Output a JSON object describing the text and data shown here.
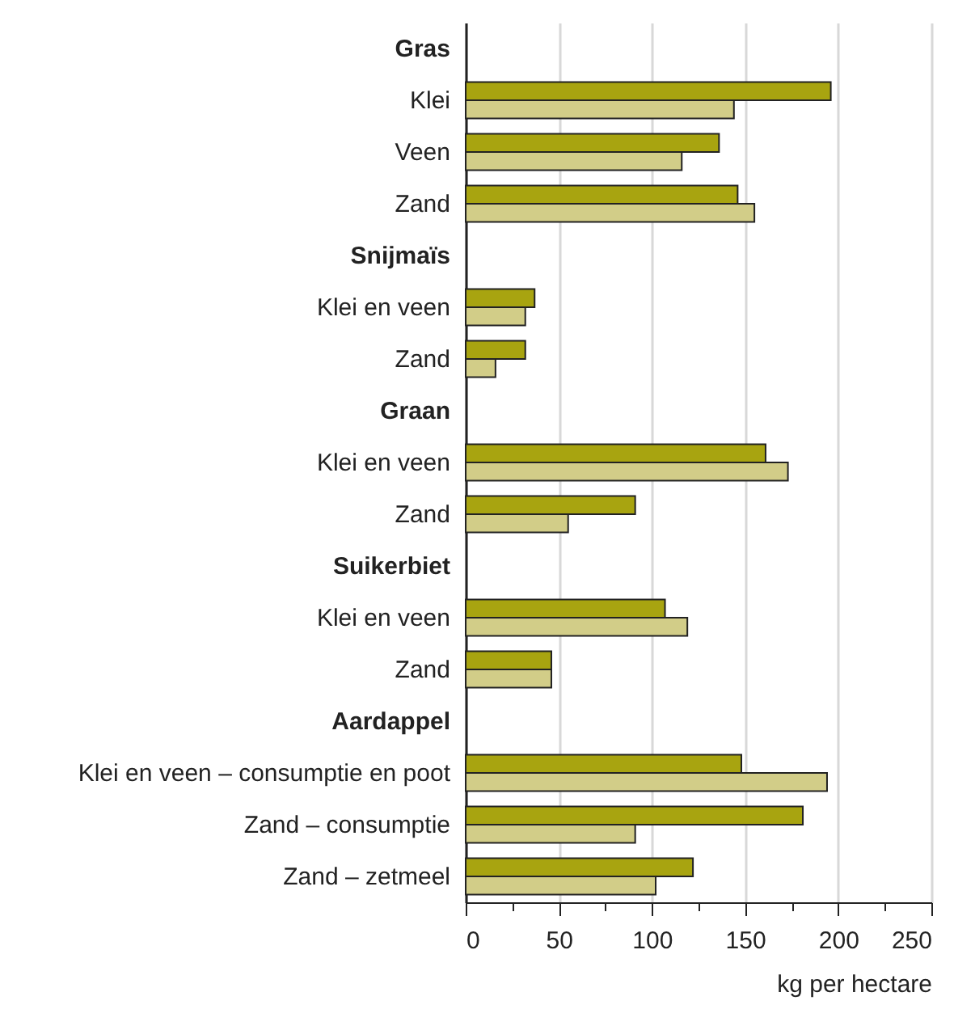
{
  "chart_data": {
    "type": "bar",
    "orientation": "horizontal",
    "xlabel": "kg per hectare",
    "categories": [
      "Gras",
      "Klei",
      "Veen",
      "Zand",
      "Snijmaïs",
      "Klei en veen",
      "Zand",
      "Graan",
      "Klei en veen",
      "Zand",
      "Suikerbiet",
      "Klei en veen",
      "Zand",
      "Aardappel",
      "Klei en veen – consumptie en poot",
      "Zand – consumptie",
      "Zand – zetmeel"
    ],
    "series": [
      {
        "color": "#a8a410",
        "values": [
          null,
          196,
          136,
          146,
          null,
          37,
          32,
          null,
          161,
          91,
          null,
          107,
          46,
          null,
          148,
          181,
          122
        ]
      },
      {
        "color": "#d2cd88",
        "values": [
          null,
          144,
          116,
          155,
          null,
          32,
          16,
          null,
          173,
          55,
          null,
          119,
          46,
          null,
          194,
          91,
          102
        ]
      }
    ],
    "xlim": [
      0,
      250
    ],
    "xticks": [
      0,
      {
        "value": 25,
        "label": null
      },
      50,
      {
        "value": 75,
        "label": null
      },
      100,
      {
        "value": 125,
        "label": null
      },
      150,
      {
        "value": 175,
        "label": null
      },
      200,
      {
        "value": 225,
        "label": null
      },
      250
    ],
    "grid": "x"
  }
}
